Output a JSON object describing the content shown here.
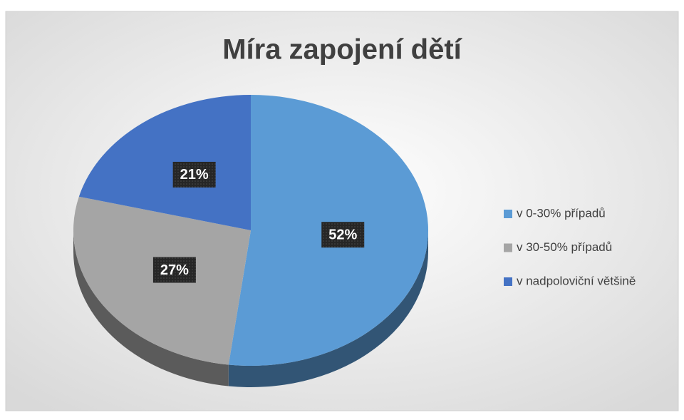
{
  "chart_data": {
    "type": "pie",
    "title": "Míra zapojení dětí",
    "categories": [
      "v 0-30% případů",
      "v 30-50% případů",
      "v nadpoloviční většině"
    ],
    "values": [
      52,
      27,
      21
    ],
    "value_labels": [
      "52%",
      "27%",
      "21%"
    ],
    "colors": [
      "#5b9bd5",
      "#a5a5a5",
      "#4472c4"
    ],
    "legend": "right"
  }
}
